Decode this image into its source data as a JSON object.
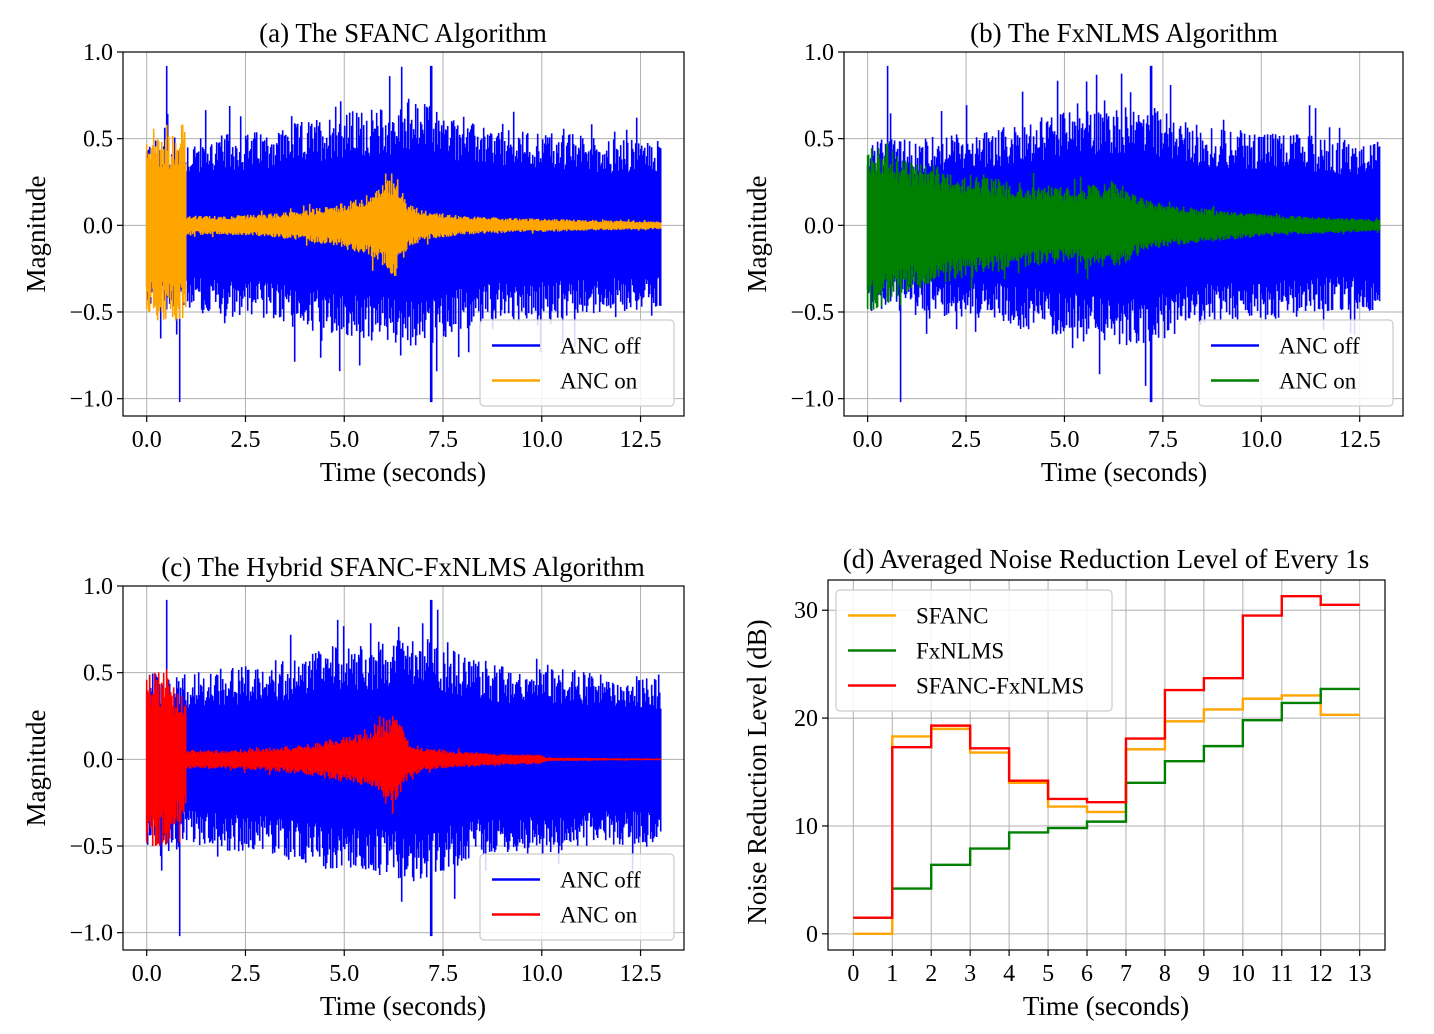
{
  "chart_data": [
    {
      "id": "a",
      "type": "line",
      "title": "(a) The SFANC Algorithm",
      "xlabel": "Time (seconds)",
      "ylabel": "Magnitude",
      "xlim": [
        -0.6,
        13.6
      ],
      "ylim": [
        -1.1,
        1.0
      ],
      "xticks": [
        "0.0",
        "2.5",
        "5.0",
        "7.5",
        "10.0",
        "12.5"
      ],
      "xtick_values": [
        0,
        2.5,
        5,
        7.5,
        10,
        12.5
      ],
      "yticks": [
        "1.0",
        "0.5",
        "0.0",
        "−0.5",
        "−1.0"
      ],
      "ytick_values": [
        1.0,
        0.5,
        0.0,
        -0.5,
        -1.0
      ],
      "grid": true,
      "legend_position": "lower-right",
      "series": [
        {
          "name": "ANC off",
          "color": "#0000ff",
          "envelope_t": [
            0,
            1,
            2,
            3,
            4,
            5,
            6,
            7,
            8,
            9,
            10,
            11,
            12,
            13
          ],
          "envelope_amp": [
            0.45,
            0.45,
            0.48,
            0.5,
            0.55,
            0.6,
            0.62,
            0.65,
            0.55,
            0.5,
            0.5,
            0.48,
            0.45,
            0.45
          ],
          "peak_max": 0.92,
          "peak_min": -1.02,
          "peak_time": 7.2,
          "end": 13.0
        },
        {
          "name": "ANC on",
          "color": "#ffa500",
          "envelope_t": [
            0,
            0.99,
            1.0,
            2,
            3,
            4,
            5,
            5.5,
            6,
            6.3,
            6.6,
            7,
            8,
            9,
            10,
            11,
            12,
            13
          ],
          "envelope_amp": [
            0.5,
            0.5,
            0.05,
            0.05,
            0.06,
            0.08,
            0.12,
            0.15,
            0.22,
            0.28,
            0.12,
            0.08,
            0.05,
            0.04,
            0.035,
            0.03,
            0.025,
            0.02
          ],
          "peak_max": 0.58,
          "peak_min": -0.54,
          "end": 13.0
        }
      ]
    },
    {
      "id": "b",
      "type": "line",
      "title": "(b) The FxNLMS Algorithm",
      "xlabel": "Time (seconds)",
      "ylabel": "Magnitude",
      "xlim": [
        -0.6,
        13.6
      ],
      "ylim": [
        -1.1,
        1.0
      ],
      "xticks": [
        "0.0",
        "2.5",
        "5.0",
        "7.5",
        "10.0",
        "12.5"
      ],
      "xtick_values": [
        0,
        2.5,
        5,
        7.5,
        10,
        12.5
      ],
      "yticks": [
        "1.0",
        "0.5",
        "0.0",
        "−0.5",
        "−1.0"
      ],
      "ytick_values": [
        1.0,
        0.5,
        0.0,
        -0.5,
        -1.0
      ],
      "grid": true,
      "legend_position": "lower-right",
      "series": [
        {
          "name": "ANC off",
          "color": "#0000ff",
          "envelope_t": [
            0,
            1,
            2,
            3,
            4,
            5,
            6,
            7,
            8,
            9,
            10,
            11,
            12,
            13
          ],
          "envelope_amp": [
            0.45,
            0.45,
            0.48,
            0.5,
            0.55,
            0.6,
            0.62,
            0.65,
            0.55,
            0.5,
            0.5,
            0.48,
            0.45,
            0.45
          ],
          "peak_max": 0.92,
          "peak_min": -1.02,
          "peak_time": 7.2,
          "end": 13.0
        },
        {
          "name": "ANC on",
          "color": "#008000",
          "envelope_t": [
            0,
            0.3,
            1,
            2,
            3,
            4,
            5,
            6,
            6.3,
            7,
            8,
            9,
            10,
            11,
            12,
            13
          ],
          "envelope_amp": [
            0.45,
            0.44,
            0.35,
            0.3,
            0.26,
            0.22,
            0.2,
            0.22,
            0.24,
            0.14,
            0.1,
            0.08,
            0.06,
            0.05,
            0.04,
            0.03
          ],
          "peak_max": 0.48,
          "peak_min": -0.46,
          "end": 13.0
        }
      ]
    },
    {
      "id": "c",
      "type": "line",
      "title": "(c) The Hybrid SFANC-FxNLMS Algorithm",
      "xlabel": "Time (seconds)",
      "ylabel": "Magnitude",
      "xlim": [
        -0.6,
        13.6
      ],
      "ylim": [
        -1.1,
        1.0
      ],
      "xticks": [
        "0.0",
        "2.5",
        "5.0",
        "7.5",
        "10.0",
        "12.5"
      ],
      "xtick_values": [
        0,
        2.5,
        5,
        7.5,
        10,
        12.5
      ],
      "yticks": [
        "1.0",
        "0.5",
        "0.0",
        "−0.5",
        "−1.0"
      ],
      "ytick_values": [
        1.0,
        0.5,
        0.0,
        -0.5,
        -1.0
      ],
      "grid": true,
      "legend_position": "lower-right",
      "series": [
        {
          "name": "ANC off",
          "color": "#0000ff",
          "envelope_t": [
            0,
            1,
            2,
            3,
            4,
            5,
            6,
            7,
            8,
            9,
            10,
            11,
            12,
            13
          ],
          "envelope_amp": [
            0.45,
            0.45,
            0.48,
            0.5,
            0.55,
            0.6,
            0.62,
            0.65,
            0.55,
            0.5,
            0.5,
            0.48,
            0.45,
            0.45
          ],
          "peak_max": 0.92,
          "peak_min": -1.02,
          "peak_time": 7.2,
          "end": 13.0
        },
        {
          "name": "ANC on",
          "color": "#ff0000",
          "envelope_t": [
            0,
            0.5,
            0.99,
            1.0,
            2,
            3,
            4,
            5,
            5.5,
            6,
            6.3,
            6.6,
            7,
            8,
            9,
            10,
            10.1,
            11,
            12,
            13
          ],
          "envelope_amp": [
            0.48,
            0.45,
            0.3,
            0.05,
            0.05,
            0.06,
            0.08,
            0.12,
            0.14,
            0.2,
            0.24,
            0.1,
            0.06,
            0.04,
            0.03,
            0.025,
            0.01,
            0.008,
            0.006,
            0.005
          ],
          "peak_max": 0.52,
          "peak_min": -0.48,
          "end": 13.0
        }
      ]
    },
    {
      "id": "d",
      "type": "line",
      "step": "post",
      "title": "(d) Averaged Noise Reduction Level of Every 1s",
      "xlabel": "Time (seconds)",
      "ylabel": "Noise Reduction Level (dB)",
      "xlim": [
        -0.65,
        13.65
      ],
      "ylim": [
        -1.5,
        32.8
      ],
      "xticks": [
        "0",
        "1",
        "2",
        "3",
        "4",
        "5",
        "6",
        "7",
        "8",
        "9",
        "10",
        "11",
        "12",
        "13"
      ],
      "xtick_values": [
        0,
        1,
        2,
        3,
        4,
        5,
        6,
        7,
        8,
        9,
        10,
        11,
        12,
        13
      ],
      "yticks": [
        "0",
        "10",
        "20",
        "30"
      ],
      "ytick_values": [
        0,
        10,
        20,
        30
      ],
      "grid": true,
      "legend_position": "upper-left",
      "x": [
        0,
        1,
        2,
        3,
        4,
        5,
        6,
        7,
        8,
        9,
        10,
        11,
        12,
        13
      ],
      "series": [
        {
          "name": "SFANC",
          "color": "#ffa500",
          "values": [
            0,
            18.3,
            19.0,
            16.8,
            14.0,
            11.8,
            11.3,
            17.1,
            19.7,
            20.8,
            21.8,
            22.1,
            20.3,
            20.3
          ]
        },
        {
          "name": "FxNLMS",
          "color": "#008000",
          "values": [
            1.5,
            4.2,
            6.4,
            7.9,
            9.4,
            9.8,
            10.4,
            14.0,
            16.0,
            17.4,
            19.8,
            21.4,
            22.7,
            22.7
          ]
        },
        {
          "name": "SFANC-FxNLMS",
          "color": "#ff0000",
          "values": [
            1.5,
            17.3,
            19.3,
            17.2,
            14.2,
            12.5,
            12.2,
            18.1,
            22.6,
            23.7,
            29.5,
            31.3,
            30.5,
            30.5
          ]
        }
      ]
    }
  ]
}
